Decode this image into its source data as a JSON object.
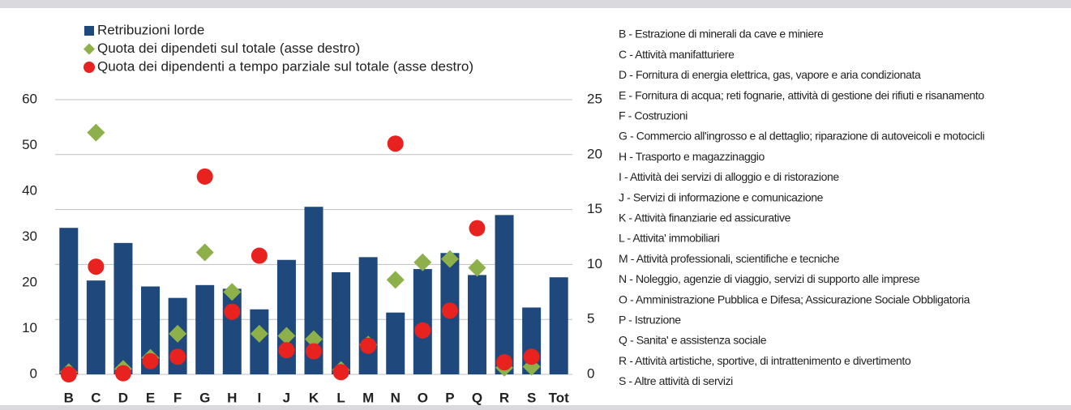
{
  "chart_data": {
    "type": "bar",
    "categories": [
      "B",
      "C",
      "D",
      "E",
      "F",
      "G",
      "H",
      "I",
      "J",
      "K",
      "L",
      "M",
      "N",
      "O",
      "P",
      "Q",
      "R",
      "S",
      "Tot"
    ],
    "series": [
      {
        "name": "Retribuzioni lorde",
        "color": "#1f497d",
        "marker": "bar",
        "values": [
          32,
          20.5,
          28.7,
          19.2,
          16.7,
          19.5,
          18.7,
          14.2,
          25,
          36.6,
          22.3,
          25.6,
          13.5,
          23,
          26.5,
          21.7,
          34.8,
          14.6,
          21.2
        ]
      },
      {
        "name": "Quota dei dipendeti sul totale (asse destro)",
        "color": "#8db04a",
        "marker": "diamond",
        "axis": "y2",
        "values": [
          0.2,
          22,
          0.5,
          1.5,
          3.7,
          11.1,
          7.5,
          3.7,
          3.5,
          3.2,
          0.4,
          2.7,
          8.6,
          10.2,
          10.5,
          9.7,
          0.6,
          0.7,
          null
        ]
      },
      {
        "name": "Quota dei dipendenti a tempo parziale sul totale (asse destro)",
        "color": "#e8231f",
        "marker": "circle",
        "axis": "y2",
        "values": [
          0,
          9.8,
          0.1,
          1.2,
          1.6,
          18,
          5.7,
          10.8,
          2.2,
          2.1,
          0.2,
          2.6,
          21,
          4,
          5.8,
          13.3,
          1.1,
          1.6,
          null
        ]
      }
    ],
    "ylim": [
      0,
      60
    ],
    "yticks": [
      0,
      10,
      20,
      30,
      40,
      50,
      60
    ],
    "y2lim": [
      0,
      25
    ],
    "y2ticks": [
      0,
      5,
      10,
      15,
      20,
      25
    ],
    "grid": true,
    "notes": [
      "B - Estrazione di minerali da cave e miniere",
      "C - Attività manifatturiere",
      "D - Fornitura di energia elettrica, gas, vapore e aria condizionata",
      "E - Fornitura di acqua; reti fognarie, attività di gestione dei rifiuti e risanamento",
      "F - Costruzioni",
      "G - Commercio all'ingrosso e al dettaglio; riparazione di autoveicoli e motocicli",
      "H - Trasporto e magazzinaggio",
      "I - Attività dei servizi di alloggio e di ristorazione",
      "J - Servizi di informazione e comunicazione",
      "K - Attività finanziarie ed assicurative",
      "L - Attivita' immobiliari",
      "M - Attività professionali, scientifiche e tecniche",
      "N - Noleggio, agenzie di viaggio, servizi di supporto alle imprese",
      "O - Amministrazione Pubblica e Difesa; Assicurazione Sociale Obbligatoria",
      "P - Istruzione",
      "Q - Sanita' e assistenza sociale",
      "R - Attività artistiche, sportive, di intrattenimento e divertimento",
      "S - Altre attività di servizi"
    ]
  }
}
